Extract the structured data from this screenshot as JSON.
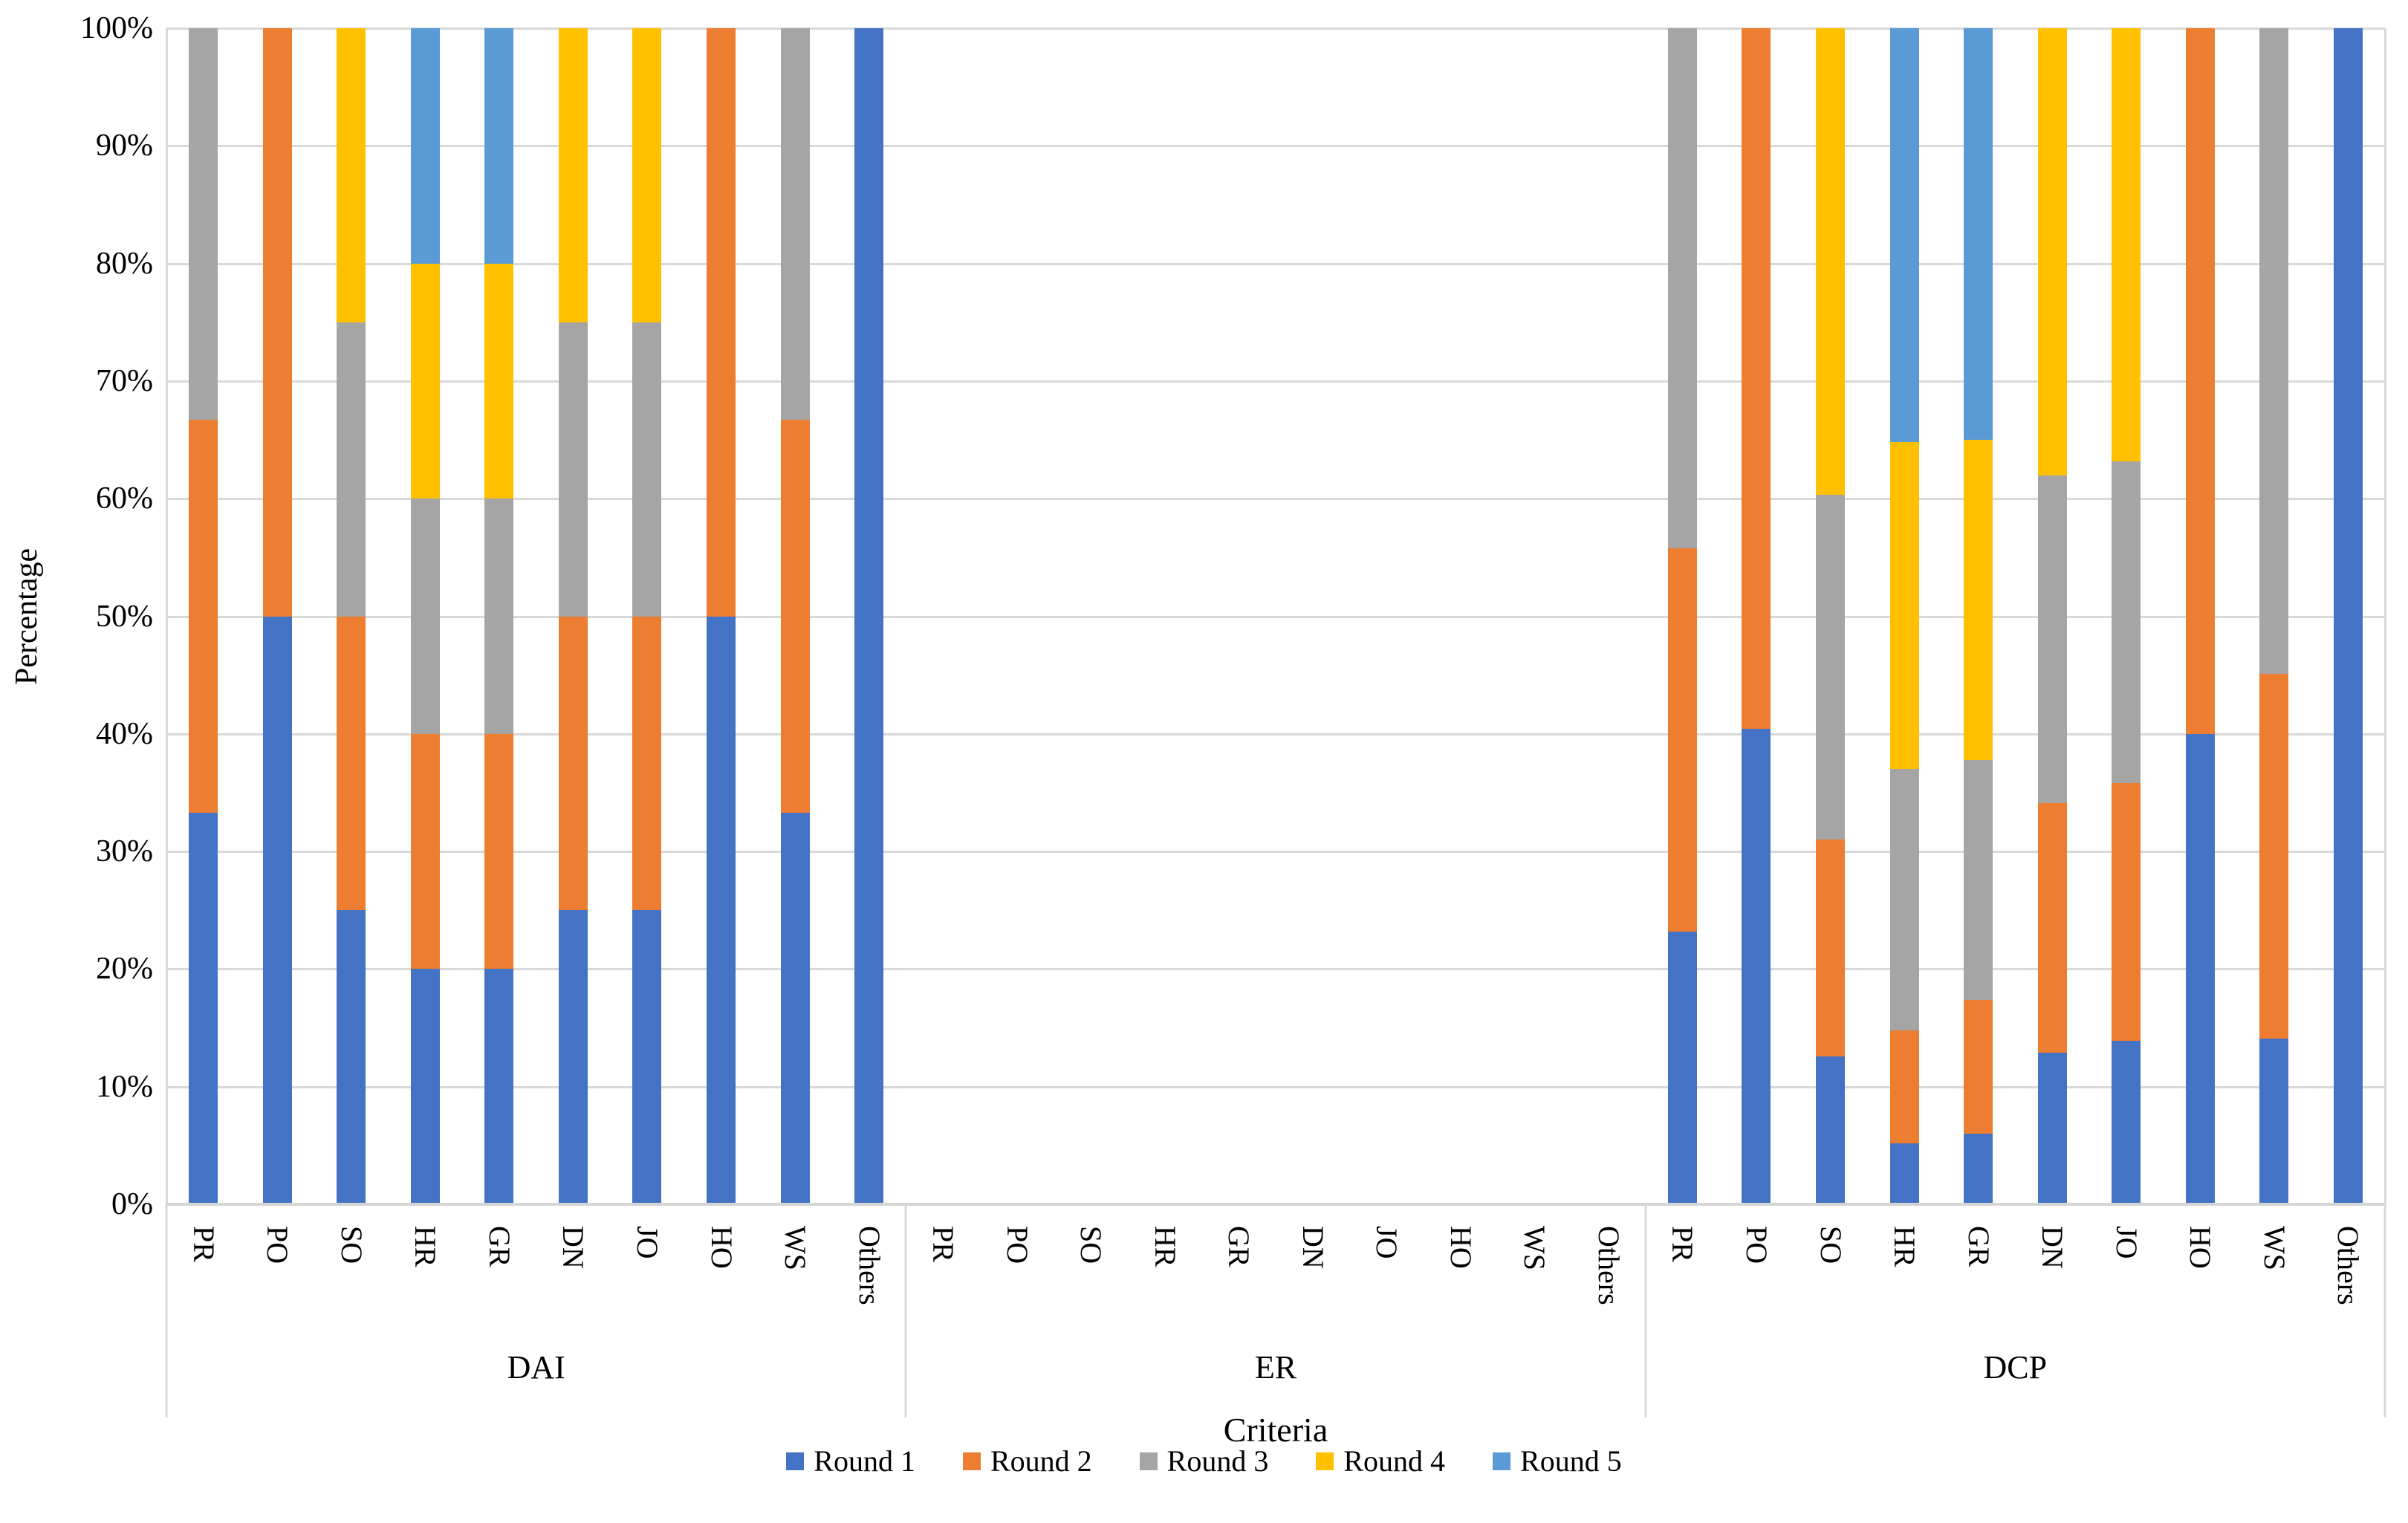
{
  "chart_data": {
    "type": "bar",
    "variant": "stacked-100-percent",
    "title": "",
    "xlabel": "Criteria",
    "ylabel": "Percentage",
    "ylim": [
      0,
      100
    ],
    "y_tick_labels_top_down": [
      "100%",
      "90%",
      "80%",
      "70%",
      "60%",
      "50%",
      "40%",
      "30%",
      "20%",
      "10%",
      "0%"
    ],
    "grid": "horizontal",
    "legend_position": "bottom",
    "series": [
      {
        "name": "Round 1",
        "color": "#4472C4"
      },
      {
        "name": "Round 2",
        "color": "#ED7D31"
      },
      {
        "name": "Round 3",
        "color": "#A5A5A5"
      },
      {
        "name": "Round 4",
        "color": "#FFC000"
      },
      {
        "name": "Round 5",
        "color": "#5B9BD5"
      }
    ],
    "groups": [
      {
        "label": "DAI",
        "bars": [
          {
            "category": "PR",
            "values": [
              33.3,
              33.4,
              33.3,
              0,
              0
            ]
          },
          {
            "category": "PO",
            "values": [
              50,
              50,
              0,
              0,
              0
            ]
          },
          {
            "category": "SO",
            "values": [
              25,
              25,
              25,
              25,
              0
            ]
          },
          {
            "category": "HR",
            "values": [
              20,
              20,
              20,
              20,
              20
            ]
          },
          {
            "category": "GR",
            "values": [
              20,
              20,
              20,
              20,
              20
            ]
          },
          {
            "category": "DN",
            "values": [
              25,
              25,
              25,
              25,
              0
            ]
          },
          {
            "category": "JO",
            "values": [
              25,
              25,
              25,
              25,
              0
            ]
          },
          {
            "category": "HO",
            "values": [
              50,
              50,
              0,
              0,
              0
            ]
          },
          {
            "category": "WS",
            "values": [
              33.3,
              33.4,
              33.3,
              0,
              0
            ]
          },
          {
            "category": "Others",
            "values": [
              100,
              0,
              0,
              0,
              0
            ]
          }
        ]
      },
      {
        "label": "ER",
        "bars": [
          {
            "category": "PR",
            "values": [
              0,
              0,
              0,
              0,
              0
            ]
          },
          {
            "category": "PO",
            "values": [
              0,
              0,
              0,
              0,
              0
            ]
          },
          {
            "category": "SO",
            "values": [
              0,
              0,
              0,
              0,
              0
            ]
          },
          {
            "category": "HR",
            "values": [
              0,
              0,
              0,
              0,
              0
            ]
          },
          {
            "category": "GR",
            "values": [
              0,
              0,
              0,
              0,
              0
            ]
          },
          {
            "category": "DN",
            "values": [
              0,
              0,
              0,
              0,
              0
            ]
          },
          {
            "category": "JO",
            "values": [
              0,
              0,
              0,
              0,
              0
            ]
          },
          {
            "category": "HO",
            "values": [
              0,
              0,
              0,
              0,
              0
            ]
          },
          {
            "category": "WS",
            "values": [
              0,
              0,
              0,
              0,
              0
            ]
          },
          {
            "category": "Others",
            "values": [
              0,
              0,
              0,
              0,
              0
            ]
          }
        ]
      },
      {
        "label": "DCP",
        "bars": [
          {
            "category": "PR",
            "values": [
              23.2,
              32.6,
              44.2,
              0,
              0
            ]
          },
          {
            "category": "PO",
            "values": [
              40.4,
              59.6,
              0,
              0,
              0
            ]
          },
          {
            "category": "SO",
            "values": [
              12.6,
              18.4,
              29.3,
              39.7,
              0
            ]
          },
          {
            "category": "HR",
            "values": [
              5.2,
              9.6,
              22.2,
              27.8,
              35.2
            ]
          },
          {
            "category": "GR",
            "values": [
              6.0,
              11.4,
              20.4,
              27.2,
              35.0
            ]
          },
          {
            "category": "DN",
            "values": [
              12.9,
              21.2,
              27.9,
              38.0,
              0
            ]
          },
          {
            "category": "JO",
            "values": [
              13.9,
              21.9,
              27.4,
              36.8,
              0
            ]
          },
          {
            "category": "HO",
            "values": [
              40.0,
              60.0,
              0,
              0,
              0
            ]
          },
          {
            "category": "WS",
            "values": [
              14.1,
              31.0,
              54.9,
              0,
              0
            ]
          },
          {
            "category": "Others",
            "values": [
              100,
              0,
              0,
              0,
              0
            ]
          }
        ]
      }
    ]
  }
}
